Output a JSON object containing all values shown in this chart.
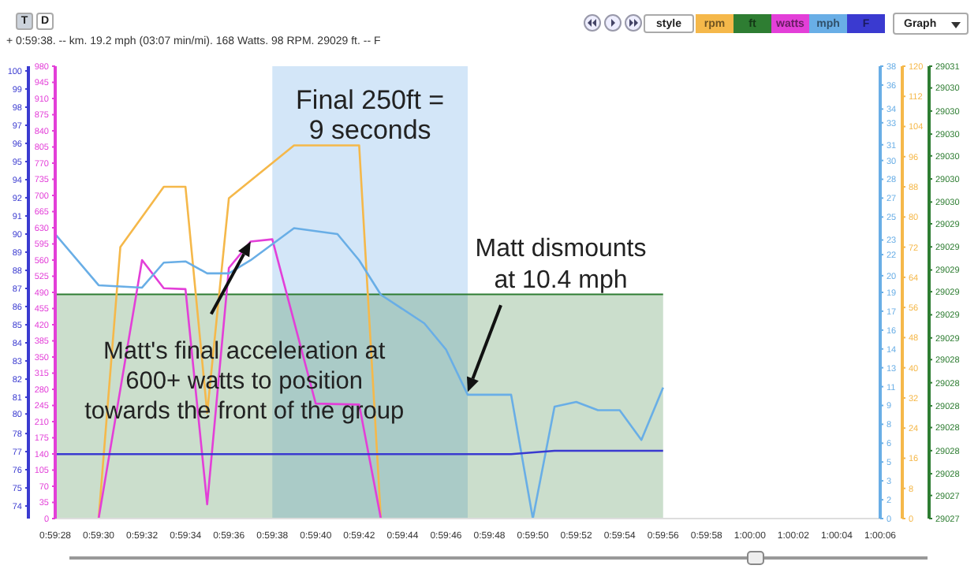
{
  "chart_data": [
    {
      "type": "line",
      "subtitle": "+ 0:59:38. -- km. 19.2 mph (03:07 min/mi). 168 Watts. 98 RPM. 29029 ft. -- F",
      "legend": "top right",
      "xlim": [
        3568,
        3606
      ],
      "xticks": [
        {
          "value": 3568,
          "label": "0:59:28"
        },
        {
          "value": 3570,
          "label": "0:59:30"
        },
        {
          "value": 3572,
          "label": "0:59:32"
        },
        {
          "value": 3574,
          "label": "0:59:34"
        },
        {
          "value": 3576,
          "label": "0:59:36"
        },
        {
          "value": 3578,
          "label": "0:59:38"
        },
        {
          "value": 3580,
          "label": "0:59:40"
        },
        {
          "value": 3582,
          "label": "0:59:42"
        },
        {
          "value": 3584,
          "label": "0:59:44"
        },
        {
          "value": 3586,
          "label": "0:59:46"
        },
        {
          "value": 3588,
          "label": "0:59:48"
        },
        {
          "value": 3590,
          "label": "0:59:50"
        },
        {
          "value": 3592,
          "label": "0:59:52"
        },
        {
          "value": 3594,
          "label": "0:59:54"
        },
        {
          "value": 3596,
          "label": "0:59:56"
        },
        {
          "value": 3598,
          "label": "0:59:58"
        },
        {
          "value": 3600,
          "label": "1:00:00"
        },
        {
          "value": 3602,
          "label": "1:00:02"
        },
        {
          "value": 3604,
          "label": "1:00:04"
        },
        {
          "value": 3606,
          "label": "1:00:06"
        }
      ],
      "ylim": [
        0,
        120
      ],
      "yticks": [
        0,
        8,
        16,
        24,
        32,
        40,
        48,
        56,
        64,
        72,
        80,
        88,
        96,
        104,
        112,
        120
      ],
      "y2lim": [
        29027.25,
        29030.58
      ],
      "y2ticks": [
        {
          "value": 29027.25,
          "label": "29027"
        },
        {
          "value": 29027.42,
          "label": "29027"
        },
        {
          "value": 29027.58,
          "label": "29028"
        },
        {
          "value": 29027.75,
          "label": "29028"
        },
        {
          "value": 29027.92,
          "label": "29028"
        },
        {
          "value": 29028.08,
          "label": "29028"
        },
        {
          "value": 29028.25,
          "label": "29028"
        },
        {
          "value": 29028.42,
          "label": "29028"
        },
        {
          "value": 29028.58,
          "label": "29029"
        },
        {
          "value": 29028.75,
          "label": "29029"
        },
        {
          "value": 29028.92,
          "label": "29029"
        },
        {
          "value": 29029.08,
          "label": "29029"
        },
        {
          "value": 29029.25,
          "label": "29029"
        },
        {
          "value": 29029.42,
          "label": "29029"
        },
        {
          "value": 29029.58,
          "label": "29030"
        },
        {
          "value": 29029.75,
          "label": "29030"
        },
        {
          "value": 29029.92,
          "label": "29030"
        },
        {
          "value": 29030.08,
          "label": "29030"
        },
        {
          "value": 29030.25,
          "label": "29030"
        },
        {
          "value": 29030.42,
          "label": "29030"
        },
        {
          "value": 29030.58,
          "label": "29031"
        }
      ],
      "series": [
        {
          "name": "rpm",
          "color": "#f5b84a",
          "x": [
            3570,
            3571,
            3573,
            3574,
            3575,
            3576,
            3579,
            3582,
            3583
          ],
          "values": [
            0,
            72,
            88,
            88,
            28,
            85,
            99,
            99,
            0
          ]
        },
        {
          "name": "ft",
          "type": "area",
          "color": "#2e7d32",
          "axis": "y2",
          "x": [
            3568,
            3596
          ],
          "values": [
            29028.9,
            29028.9
          ]
        }
      ],
      "bands": [
        {
          "axis": "x",
          "from": 3578,
          "to": 3587,
          "label": "Final 250ft = 9 seconds",
          "color": "#bcd9f5"
        }
      ],
      "annotations": [
        "T",
        "D",
        "style",
        "Graph"
      ]
    },
    {
      "type": "line",
      "legend": "top right",
      "tick_labels": "y",
      "xlim": [
        3568,
        3606
      ],
      "ylim": [
        0,
        980
      ],
      "yticks": [
        0,
        35,
        70,
        105,
        140,
        175,
        210,
        245,
        280,
        315,
        350,
        385,
        420,
        455,
        490,
        525,
        560,
        595,
        630,
        665,
        700,
        735,
        770,
        805,
        840,
        875,
        910,
        945,
        980
      ],
      "y2lim": [
        73.25,
        100.28
      ],
      "y2ticks": [
        74,
        {
          "value": 75.08,
          "label": "75"
        },
        {
          "value": 76.17,
          "label": "76"
        },
        {
          "value": 77.25,
          "label": "77"
        },
        {
          "value": 78.33,
          "label": "78"
        },
        {
          "value": 79.5,
          "label": "80"
        },
        {
          "value": 80.5,
          "label": "81"
        },
        {
          "value": 81.58,
          "label": "82"
        },
        {
          "value": 82.67,
          "label": "83"
        },
        {
          "value": 83.75,
          "label": "84"
        },
        {
          "value": 84.83,
          "label": "85"
        },
        {
          "value": 85.92,
          "label": "86"
        },
        87,
        {
          "value": 88.08,
          "label": "88"
        },
        {
          "value": 89.17,
          "label": "89"
        },
        {
          "value": 90.25,
          "label": "90"
        },
        {
          "value": 91.33,
          "label": "91"
        },
        {
          "value": 92.42,
          "label": "92"
        },
        {
          "value": 93.5,
          "label": "94"
        },
        {
          "value": 94.58,
          "label": "95"
        },
        {
          "value": 95.67,
          "label": "96"
        },
        {
          "value": 96.75,
          "label": "97"
        },
        {
          "value": 97.83,
          "label": "98"
        },
        {
          "value": 98.92,
          "label": "99"
        },
        100
      ],
      "y3lim": [
        0,
        38
      ],
      "y3ticks": [
        0,
        {
          "value": 1.58,
          "label": "2"
        },
        {
          "value": 3.17,
          "label": "3"
        },
        {
          "value": 4.75,
          "label": "5"
        },
        {
          "value": 6.33,
          "label": "6"
        },
        {
          "value": 7.92,
          "label": "8"
        },
        {
          "value": 9.5,
          "label": "9"
        },
        {
          "value": 11.08,
          "label": "11"
        },
        {
          "value": 12.67,
          "label": "13"
        },
        {
          "value": 14.25,
          "label": "14"
        },
        {
          "value": 15.83,
          "label": "16"
        },
        {
          "value": 17.42,
          "label": "17"
        },
        19,
        {
          "value": 20.4,
          "label": "20"
        },
        {
          "value": 22.17,
          "label": "22"
        },
        {
          "value": 23.4,
          "label": "23"
        },
        {
          "value": 25.33,
          "label": "25"
        },
        {
          "value": 26.92,
          "label": "27"
        },
        {
          "value": 28.5,
          "label": "28"
        },
        {
          "value": 30.08,
          "label": "30"
        },
        {
          "value": 31.4,
          "label": "31"
        },
        {
          "value": 33.25,
          "label": "33"
        },
        {
          "value": 34.4,
          "label": "34"
        },
        {
          "value": 36.42,
          "label": "36"
        },
        38
      ],
      "series": [
        {
          "name": "watts",
          "color": "#e33fd8",
          "x": [
            3570,
            3572,
            3573,
            3574,
            3575,
            3576,
            3577,
            3578,
            3580,
            3582,
            3583
          ],
          "values": [
            0,
            560,
            499,
            497,
            31,
            543,
            600,
            605,
            249,
            247,
            0
          ]
        },
        {
          "name": "mph",
          "color": "#69aee6",
          "axis": "y3",
          "x": [
            3568,
            3570,
            3572,
            3573,
            3574,
            3575,
            3576,
            3577,
            3579,
            3581,
            3582,
            3583,
            3585,
            3586,
            3587,
            3589,
            3590,
            3591,
            3592,
            3593,
            3594,
            3595,
            3596
          ],
          "values": [
            23.9,
            19.6,
            19.4,
            21.5,
            21.6,
            20.6,
            20.6,
            21.7,
            24.4,
            23.9,
            21.7,
            18.8,
            16.4,
            14.2,
            10.4,
            10.4,
            0,
            9.4,
            9.8,
            9.1,
            9.1,
            6.6,
            11.0
          ]
        },
        {
          "name": "F",
          "color": "#3a3ad0",
          "axis": "y2",
          "x": [
            3568,
            3589,
            3591,
            3596
          ],
          "values": [
            77.1,
            77.1,
            77.3,
            77.3
          ]
        }
      ],
      "annotations": [
        {
          "text": "Matt's final acceleration at 600+ watts to position towards the front of the group",
          "x": 3577,
          "y": 600
        },
        {
          "text": "Matt dismounts at 10.4 mph",
          "x": 3587
        }
      ]
    }
  ]
}
